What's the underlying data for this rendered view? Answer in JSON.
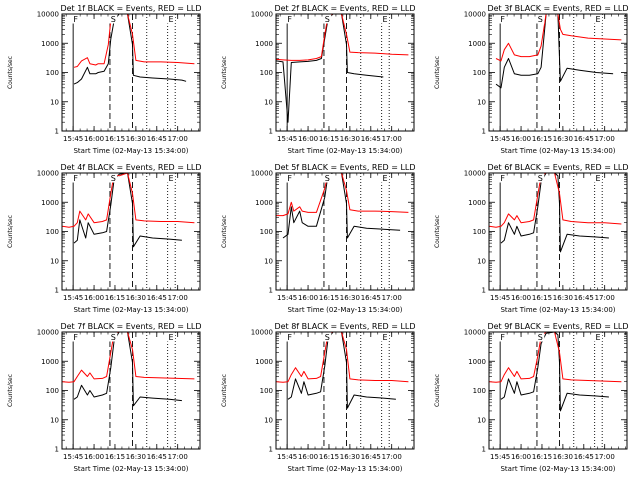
{
  "chart_data": [
    {
      "type": "line",
      "title": "Det 1f BLACK = Events, RED = LLD",
      "xlabel": "Start Time (02-May-13 15:34:00)",
      "ylabel": "Counts/sec",
      "x_ticks": [
        "15:45",
        "16:00",
        "16:15",
        "16:30",
        "16:45",
        "17:00"
      ],
      "y_ticks": [
        "1",
        "10",
        "100",
        "1000",
        "10000"
      ],
      "ylog": true,
      "ylim": [
        1,
        10000
      ],
      "markers": [
        "F",
        "S",
        "E"
      ],
      "series": [
        {
          "color": "#000000",
          "x": [
            15.76,
            15.8,
            15.85,
            15.92,
            15.95,
            16.02,
            16.05,
            16.12,
            16.17,
            16.2,
            16.24,
            16.3,
            16.4,
            16.46,
            16.47,
            16.55,
            16.7,
            16.9,
            17.05,
            17.1
          ],
          "y": [
            40,
            45,
            60,
            150,
            90,
            90,
            100,
            110,
            200,
            1400,
            6000,
            10000,
            10000,
            900,
            80,
            70,
            65,
            60,
            55,
            50
          ]
        },
        {
          "color": "#ff0000",
          "x": [
            15.76,
            15.8,
            15.85,
            15.92,
            15.95,
            16.02,
            16.05,
            16.12,
            16.17,
            16.2,
            16.24,
            16.3,
            16.4,
            16.46,
            16.5,
            16.6,
            16.8,
            17.0,
            17.2
          ],
          "y": [
            150,
            160,
            250,
            320,
            200,
            180,
            200,
            200,
            900,
            6000,
            10000,
            10000,
            10000,
            2000,
            260,
            230,
            230,
            220,
            200
          ]
        }
      ]
    },
    {
      "type": "line",
      "title": "Det 2f BLACK = Events, RED = LLD",
      "xlabel": "Start Time (02-May-13 15:34:00)",
      "ylabel": "Counts/sec",
      "x_ticks": [
        "15:45",
        "16:00",
        "16:15",
        "16:30",
        "16:45",
        "17:00"
      ],
      "y_ticks": [
        "1",
        "10",
        "100",
        "1000",
        "10000"
      ],
      "ylog": true,
      "ylim": [
        1,
        10000
      ],
      "markers": [
        "F",
        "S",
        "E"
      ],
      "series": [
        {
          "color": "#000000",
          "x": [
            15.62,
            15.7,
            15.76,
            15.8,
            15.9,
            16.0,
            16.1,
            16.16,
            16.2,
            16.24,
            16.3,
            16.4,
            16.46,
            16.47,
            16.55,
            16.7,
            16.9
          ],
          "y": [
            250,
            230,
            2,
            220,
            230,
            240,
            260,
            300,
            1500,
            7000,
            10000,
            10000,
            900,
            100,
            90,
            80,
            70
          ]
        },
        {
          "color": "#ff0000",
          "x": [
            15.62,
            15.7,
            15.8,
            15.9,
            16.0,
            16.1,
            16.16,
            16.2,
            16.24,
            16.3,
            16.4,
            16.46,
            16.5,
            16.6,
            16.8,
            17.0,
            17.2
          ],
          "y": [
            280,
            270,
            260,
            260,
            270,
            300,
            350,
            2000,
            9000,
            10000,
            10000,
            2000,
            500,
            480,
            460,
            420,
            400
          ]
        }
      ]
    },
    {
      "type": "line",
      "title": "Det 3f BLACK = Events, RED = LLD",
      "xlabel": "Start Time (02-May-13 15:34:00)",
      "ylabel": "Counts/sec",
      "x_ticks": [
        "15:45",
        "16:00",
        "16:15",
        "16:30",
        "16:45",
        "17:00"
      ],
      "y_ticks": [
        "1",
        "10",
        "100",
        "1000",
        "10000"
      ],
      "ylog": true,
      "ylim": [
        1,
        10000
      ],
      "markers": [
        "F",
        "S",
        "E"
      ],
      "series": [
        {
          "color": "#000000",
          "x": [
            15.7,
            15.76,
            15.8,
            15.85,
            15.92,
            16.0,
            16.1,
            16.2,
            16.24,
            16.3,
            16.44,
            16.46,
            16.47,
            16.55,
            16.7,
            16.9,
            17.1
          ],
          "y": [
            40,
            30,
            150,
            300,
            90,
            80,
            80,
            90,
            150,
            10000,
            10000,
            300,
            50,
            140,
            120,
            100,
            90
          ]
        },
        {
          "color": "#ff0000",
          "x": [
            15.7,
            15.76,
            15.8,
            15.85,
            15.92,
            16.0,
            16.1,
            16.2,
            16.24,
            16.3,
            16.44,
            16.47,
            16.5,
            16.6,
            16.8,
            17.0,
            17.2
          ],
          "y": [
            300,
            250,
            600,
            1000,
            400,
            350,
            350,
            400,
            800,
            10000,
            10000,
            3000,
            2000,
            1800,
            1500,
            1400,
            1300
          ]
        }
      ]
    },
    {
      "type": "line",
      "title": "Det 4f BLACK = Events, RED = LLD",
      "xlabel": "Start Time (02-May-13 15:34:00)",
      "ylabel": "Counts/sec",
      "x_ticks": [
        "15:45",
        "16:00",
        "16:15",
        "16:30",
        "16:45",
        "17:00"
      ],
      "y_ticks": [
        "1",
        "10",
        "100",
        "1000",
        "10000"
      ],
      "ylog": true,
      "ylim": [
        1,
        10000
      ],
      "markers": [
        "F",
        "S",
        "E"
      ],
      "series": [
        {
          "color": "#000000",
          "x": [
            15.76,
            15.8,
            15.83,
            15.9,
            15.93,
            16.0,
            16.1,
            16.15,
            16.2,
            16.24,
            16.3,
            16.4,
            16.46,
            16.47,
            16.55,
            16.7,
            16.9,
            17.05
          ],
          "y": [
            40,
            50,
            250,
            60,
            200,
            80,
            90,
            100,
            800,
            6000,
            9000,
            10000,
            900,
            30,
            70,
            60,
            55,
            50
          ]
        },
        {
          "color": "#ff0000",
          "x": [
            15.62,
            15.7,
            15.76,
            15.8,
            15.83,
            15.9,
            15.93,
            16.0,
            16.1,
            16.15,
            16.2,
            16.24,
            16.3,
            16.4,
            16.46,
            16.5,
            16.6,
            16.8,
            17.0,
            17.2
          ],
          "y": [
            150,
            140,
            150,
            200,
            500,
            250,
            400,
            200,
            220,
            250,
            2000,
            9000,
            8000,
            10000,
            2000,
            250,
            230,
            220,
            220,
            200
          ]
        }
      ]
    },
    {
      "type": "line",
      "title": "Det 5f BLACK = Events, RED = LLD",
      "xlabel": "Start Time (02-May-13 15:34:00)",
      "ylabel": "Counts/sec",
      "x_ticks": [
        "15:45",
        "16:00",
        "16:15",
        "16:30",
        "16:45",
        "17:00"
      ],
      "y_ticks": [
        "1",
        "10",
        "100",
        "1000",
        "10000"
      ],
      "ylog": true,
      "ylim": [
        1,
        10000
      ],
      "markers": [
        "F",
        "S",
        "E"
      ],
      "series": [
        {
          "color": "#000000",
          "x": [
            15.7,
            15.76,
            15.8,
            15.83,
            15.9,
            15.93,
            16.0,
            16.1,
            16.2,
            16.24,
            16.3,
            16.4,
            16.46,
            16.47,
            16.55,
            16.7,
            16.9,
            17.1
          ],
          "y": [
            60,
            80,
            700,
            200,
            500,
            200,
            150,
            150,
            1500,
            9000,
            10000,
            10000,
            900,
            60,
            150,
            130,
            120,
            110
          ]
        },
        {
          "color": "#ff0000",
          "x": [
            15.62,
            15.7,
            15.76,
            15.8,
            15.83,
            15.9,
            15.93,
            16.0,
            16.1,
            16.2,
            16.24,
            16.3,
            16.4,
            16.46,
            16.5,
            16.6,
            16.8,
            17.0,
            17.2
          ],
          "y": [
            350,
            350,
            400,
            1000,
            500,
            700,
            500,
            450,
            450,
            3000,
            10000,
            10000,
            10000,
            2500,
            550,
            500,
            500,
            480,
            450
          ]
        }
      ]
    },
    {
      "type": "line",
      "title": "Det 6f BLACK = Events, RED = LLD",
      "xlabel": "Start Time (02-May-13 15:34:00)",
      "ylabel": "Counts/sec",
      "x_ticks": [
        "15:45",
        "16:00",
        "16:15",
        "16:30",
        "16:45",
        "17:00"
      ],
      "y_ticks": [
        "1",
        "10",
        "100",
        "1000",
        "10000"
      ],
      "ylog": true,
      "ylim": [
        1,
        10000
      ],
      "markers": [
        "F",
        "S",
        "E"
      ],
      "series": [
        {
          "color": "#000000",
          "x": [
            15.76,
            15.8,
            15.85,
            15.92,
            15.95,
            16.0,
            16.1,
            16.15,
            16.2,
            16.24,
            16.3,
            16.4,
            16.44,
            16.46,
            16.47,
            16.55,
            16.7,
            16.9,
            17.05
          ],
          "y": [
            40,
            50,
            200,
            80,
            150,
            70,
            80,
            90,
            700,
            5000,
            10000,
            10000,
            8000,
            900,
            20,
            80,
            70,
            65,
            60
          ]
        },
        {
          "color": "#ff0000",
          "x": [
            15.62,
            15.7,
            15.76,
            15.8,
            15.85,
            15.92,
            15.95,
            16.0,
            16.1,
            16.15,
            16.2,
            16.24,
            16.3,
            16.4,
            16.46,
            16.5,
            16.6,
            16.8,
            17.0,
            17.2
          ],
          "y": [
            150,
            140,
            150,
            200,
            400,
            250,
            350,
            200,
            220,
            250,
            1800,
            8000,
            10000,
            10000,
            2000,
            250,
            220,
            200,
            200,
            180
          ]
        }
      ]
    },
    {
      "type": "line",
      "title": "Det 7f BLACK = Events, RED = LLD",
      "xlabel": "Start Time (02-May-13 15:34:00)",
      "ylabel": "Counts/sec",
      "x_ticks": [
        "15:45",
        "16:00",
        "16:15",
        "16:30",
        "16:45",
        "17:00"
      ],
      "y_ticks": [
        "1",
        "10",
        "100",
        "1000",
        "10000"
      ],
      "ylog": true,
      "ylim": [
        1,
        10000
      ],
      "markers": [
        "F",
        "S",
        "E"
      ],
      "series": [
        {
          "color": "#000000",
          "x": [
            15.76,
            15.8,
            15.85,
            15.92,
            15.95,
            16.0,
            16.1,
            16.15,
            16.2,
            16.24,
            16.3,
            16.4,
            16.46,
            16.47,
            16.55,
            16.7,
            16.9,
            17.05
          ],
          "y": [
            50,
            60,
            150,
            70,
            100,
            60,
            70,
            80,
            600,
            5000,
            10000,
            10000,
            900,
            30,
            60,
            55,
            50,
            45
          ]
        },
        {
          "color": "#ff0000",
          "x": [
            15.62,
            15.7,
            15.76,
            15.8,
            15.85,
            15.92,
            15.95,
            16.0,
            16.1,
            16.15,
            16.2,
            16.24,
            16.3,
            16.4,
            16.46,
            16.5,
            16.6,
            16.8,
            17.0,
            17.2
          ],
          "y": [
            200,
            190,
            200,
            300,
            500,
            300,
            400,
            250,
            260,
            300,
            2000,
            9000,
            10000,
            10000,
            2500,
            300,
            280,
            270,
            260,
            250
          ]
        }
      ]
    },
    {
      "type": "line",
      "title": "Det 8f BLACK = Events, RED = LLD",
      "xlabel": "Start Time (02-May-13 15:34:00)",
      "ylabel": "Counts/sec",
      "x_ticks": [
        "15:45",
        "16:00",
        "16:15",
        "16:30",
        "16:45",
        "17:00"
      ],
      "y_ticks": [
        "1",
        "10",
        "100",
        "1000",
        "10000"
      ],
      "ylog": true,
      "ylim": [
        1,
        10000
      ],
      "markers": [
        "F",
        "S",
        "E"
      ],
      "series": [
        {
          "color": "#000000",
          "x": [
            15.76,
            15.8,
            15.85,
            15.92,
            15.95,
            16.0,
            16.1,
            16.15,
            16.2,
            16.24,
            16.3,
            16.4,
            16.46,
            16.47,
            16.55,
            16.7,
            16.9,
            17.05
          ],
          "y": [
            50,
            60,
            250,
            80,
            200,
            70,
            80,
            90,
            700,
            6000,
            10000,
            10000,
            900,
            25,
            70,
            60,
            55,
            50
          ]
        },
        {
          "color": "#ff0000",
          "x": [
            15.62,
            15.7,
            15.76,
            15.8,
            15.85,
            15.92,
            15.95,
            16.0,
            16.1,
            16.15,
            16.2,
            16.24,
            16.3,
            16.4,
            16.46,
            16.5,
            16.6,
            16.8,
            17.0,
            17.2
          ],
          "y": [
            200,
            190,
            200,
            350,
            600,
            300,
            450,
            250,
            260,
            300,
            2000,
            9000,
            10000,
            10000,
            2500,
            250,
            230,
            220,
            220,
            200
          ]
        }
      ]
    },
    {
      "type": "line",
      "title": "Det 9f BLACK = Events, RED = LLD",
      "xlabel": "Start Time (02-May-13 15:34:00)",
      "ylabel": "Counts/sec",
      "x_ticks": [
        "15:45",
        "16:00",
        "16:15",
        "16:30",
        "16:45",
        "17:00"
      ],
      "y_ticks": [
        "1",
        "10",
        "100",
        "1000",
        "10000"
      ],
      "ylog": true,
      "ylim": [
        1,
        10000
      ],
      "markers": [
        "F",
        "S",
        "E"
      ],
      "series": [
        {
          "color": "#000000",
          "x": [
            15.76,
            15.8,
            15.85,
            15.92,
            15.95,
            16.0,
            16.1,
            16.15,
            16.2,
            16.24,
            16.3,
            16.4,
            16.44,
            16.46,
            16.47,
            16.55,
            16.7,
            16.9,
            17.05
          ],
          "y": [
            50,
            60,
            250,
            80,
            200,
            70,
            80,
            90,
            600,
            4000,
            9000,
            10000,
            8000,
            900,
            20,
            80,
            70,
            65,
            60
          ]
        },
        {
          "color": "#ff0000",
          "x": [
            15.62,
            15.7,
            15.76,
            15.8,
            15.85,
            15.92,
            15.95,
            16.0,
            16.1,
            16.15,
            16.2,
            16.24,
            16.3,
            16.4,
            16.46,
            16.5,
            16.6,
            16.8,
            17.0,
            17.2
          ],
          "y": [
            200,
            190,
            200,
            350,
            600,
            300,
            450,
            250,
            260,
            300,
            1500,
            7000,
            10000,
            10000,
            2000,
            250,
            230,
            220,
            210,
            200
          ]
        }
      ]
    }
  ]
}
